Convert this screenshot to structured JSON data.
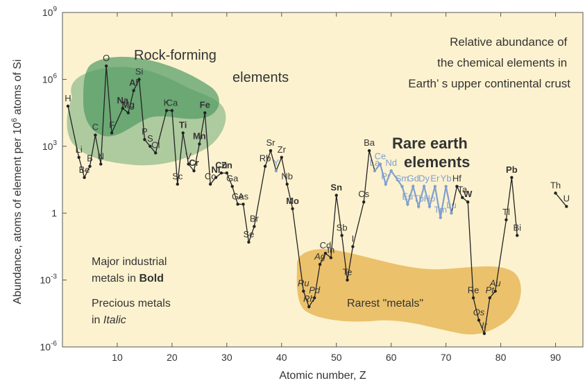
{
  "chart_data": {
    "type": "line",
    "title": "Relative abundance of the chemical elements in Earth’s upper continental crust",
    "title_lines": [
      "Relative abundance of",
      "the chemical elements in",
      "Earth’ s upper continental crust"
    ],
    "xlabel": "Atomic number, Z",
    "ylabel_parts": {
      "before": "Abundance, atoms of element per 10",
      "sup": "6",
      "after": " atoms of Si"
    },
    "xlim": [
      0,
      95
    ],
    "ylim_log10": [
      -6,
      9
    ],
    "x_ticks": [
      10,
      20,
      30,
      40,
      50,
      60,
      70,
      80,
      90
    ],
    "y_ticks": [
      {
        "exp": -6,
        "label": "10",
        "sup": "-6"
      },
      {
        "exp": -3,
        "label": "10",
        "sup": "-3"
      },
      {
        "exp": 0,
        "label": "1",
        "sup": ""
      },
      {
        "exp": 3,
        "label": "10",
        "sup": "3"
      },
      {
        "exp": 6,
        "label": "10",
        "sup": "6"
      },
      {
        "exp": 9,
        "label": "10",
        "sup": "9"
      }
    ],
    "background": "#fdf2cf",
    "colors": {
      "line": "#222222",
      "rare_earth": "#7f9fcf",
      "rock_forming": "#4e9a63",
      "rarest": "#e8b85a"
    },
    "region_labels": {
      "rock_forming": [
        "Rock-forming",
        "elements"
      ],
      "rare_earth": [
        "Rare earth",
        "elements"
      ],
      "rarest": "Rarest  \"metals\""
    },
    "notes": {
      "industrial": [
        "Major industrial",
        "metals in ",
        "Bold"
      ],
      "precious": [
        "Precious metals",
        "in ",
        "Italic"
      ]
    },
    "elements": [
      {
        "z": 1,
        "sym": "H",
        "v": 4.8
      },
      {
        "z": 3,
        "sym": "Li",
        "v": 2.5
      },
      {
        "z": 4,
        "sym": "Be",
        "v": 1.6
      },
      {
        "z": 5,
        "sym": "B",
        "v": 2.1
      },
      {
        "z": 6,
        "sym": "C",
        "v": 3.5
      },
      {
        "z": 7,
        "sym": "N",
        "v": 2.2
      },
      {
        "z": 8,
        "sym": "O",
        "v": 6.6
      },
      {
        "z": 9,
        "sym": "F",
        "v": 3.6
      },
      {
        "z": 11,
        "sym": "Na",
        "v": 4.7,
        "bold": true
      },
      {
        "z": 12,
        "sym": "Mg",
        "v": 4.5,
        "bold": true
      },
      {
        "z": 13,
        "sym": "Al",
        "v": 5.5,
        "bold": true
      },
      {
        "z": 14,
        "sym": "Si",
        "v": 6.0
      },
      {
        "z": 15,
        "sym": "P",
        "v": 3.3
      },
      {
        "z": 16,
        "sym": "S",
        "v": 3.0
      },
      {
        "z": 17,
        "sym": "Cl",
        "v": 2.7
      },
      {
        "z": 19,
        "sym": "K",
        "v": 4.6
      },
      {
        "z": 20,
        "sym": "Ca",
        "v": 4.6
      },
      {
        "z": 21,
        "sym": "Sc",
        "v": 1.3
      },
      {
        "z": 22,
        "sym": "Ti",
        "v": 3.6,
        "bold": true
      },
      {
        "z": 23,
        "sym": "V",
        "v": 2.2
      },
      {
        "z": 24,
        "sym": "Cr",
        "v": 1.9,
        "bold": true
      },
      {
        "z": 25,
        "sym": "Mn",
        "v": 3.1,
        "bold": true
      },
      {
        "z": 26,
        "sym": "Fe",
        "v": 4.5,
        "bold": true
      },
      {
        "z": 27,
        "sym": "Co",
        "v": 1.3
      },
      {
        "z": 28,
        "sym": "Ni",
        "v": 1.6,
        "bold": true
      },
      {
        "z": 29,
        "sym": "Cu",
        "v": 1.8,
        "bold": true
      },
      {
        "z": 30,
        "sym": "Zn",
        "v": 1.8,
        "bold": true
      },
      {
        "z": 31,
        "sym": "Ga",
        "v": 1.2
      },
      {
        "z": 32,
        "sym": "Ge",
        "v": 0.4
      },
      {
        "z": 33,
        "sym": "As",
        "v": 0.4
      },
      {
        "z": 34,
        "sym": "Se",
        "v": -1.3
      },
      {
        "z": 35,
        "sym": "Br",
        "v": -0.6
      },
      {
        "z": 37,
        "sym": "Rb",
        "v": 2.1
      },
      {
        "z": 38,
        "sym": "Sr",
        "v": 2.8
      },
      {
        "z": 39,
        "sym": "Y",
        "v": 1.9,
        "rare": true
      },
      {
        "z": 40,
        "sym": "Zr",
        "v": 2.5
      },
      {
        "z": 41,
        "sym": "Nb",
        "v": 1.3
      },
      {
        "z": 42,
        "sym": "Mo",
        "v": 0.2,
        "bold": true
      },
      {
        "z": 44,
        "sym": "Ru",
        "v": -3.5,
        "italic": true
      },
      {
        "z": 45,
        "sym": "Rh",
        "v": -4.2,
        "italic": true
      },
      {
        "z": 46,
        "sym": "Pd",
        "v": -3.8,
        "italic": true
      },
      {
        "z": 47,
        "sym": "Ag",
        "v": -2.3,
        "italic": true
      },
      {
        "z": 48,
        "sym": "Cd",
        "v": -1.8
      },
      {
        "z": 49,
        "sym": "In",
        "v": -2.0
      },
      {
        "z": 50,
        "sym": "Sn",
        "v": 0.8,
        "bold": true
      },
      {
        "z": 51,
        "sym": "Sb",
        "v": -1.0
      },
      {
        "z": 52,
        "sym": "Te",
        "v": -3.0
      },
      {
        "z": 53,
        "sym": "I",
        "v": -1.5
      },
      {
        "z": 55,
        "sym": "Cs",
        "v": 0.5
      },
      {
        "z": 56,
        "sym": "Ba",
        "v": 2.8
      },
      {
        "z": 57,
        "sym": "La",
        "v": 1.9,
        "rare": true
      },
      {
        "z": 58,
        "sym": "Ce",
        "v": 2.2,
        "rare": true
      },
      {
        "z": 59,
        "sym": "Pr",
        "v": 1.3,
        "rare": true
      },
      {
        "z": 60,
        "sym": "Nd",
        "v": 1.9,
        "rare": true
      },
      {
        "z": 62,
        "sym": "Sm",
        "v": 1.2,
        "rare": true
      },
      {
        "z": 63,
        "sym": "Eu",
        "v": 0.4,
        "rare": true
      },
      {
        "z": 64,
        "sym": "Gd",
        "v": 1.2,
        "rare": true
      },
      {
        "z": 65,
        "sym": "Tb",
        "v": 0.3,
        "rare": true
      },
      {
        "z": 66,
        "sym": "Dy",
        "v": 1.2,
        "rare": true
      },
      {
        "z": 67,
        "sym": "Ho",
        "v": 0.3,
        "rare": true
      },
      {
        "z": 68,
        "sym": "Er",
        "v": 1.2,
        "rare": true
      },
      {
        "z": 69,
        "sym": "Tm",
        "v": -0.2,
        "rare": true
      },
      {
        "z": 70,
        "sym": "Yb",
        "v": 1.2,
        "rare": true
      },
      {
        "z": 71,
        "sym": "Lu",
        "v": 0.0,
        "rare": true
      },
      {
        "z": 72,
        "sym": "Hf",
        "v": 1.2
      },
      {
        "z": 73,
        "sym": "Ta",
        "v": 0.7
      },
      {
        "z": 74,
        "sym": "W",
        "v": 0.5,
        "bold": true
      },
      {
        "z": 75,
        "sym": "Re",
        "v": -3.8
      },
      {
        "z": 76,
        "sym": "Os",
        "v": -4.8,
        "italic": true
      },
      {
        "z": 77,
        "sym": "Ir",
        "v": -5.4,
        "italic": true
      },
      {
        "z": 78,
        "sym": "Pt",
        "v": -3.8,
        "italic": true
      },
      {
        "z": 79,
        "sym": "Au",
        "v": -3.5,
        "italic": true
      },
      {
        "z": 81,
        "sym": "Tl",
        "v": -0.3
      },
      {
        "z": 82,
        "sym": "Pb",
        "v": 1.6,
        "bold": true
      },
      {
        "z": 83,
        "sym": "Bi",
        "v": -1.0
      },
      {
        "z": 90,
        "sym": "Th",
        "v": 0.9
      },
      {
        "z": 92,
        "sym": "U",
        "v": 0.3
      }
    ]
  }
}
